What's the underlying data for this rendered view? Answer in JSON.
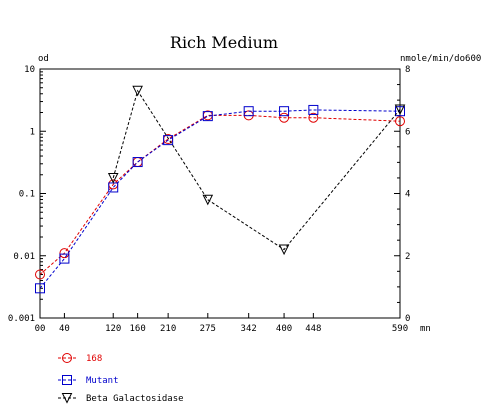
{
  "chart_data": {
    "type": "line",
    "title": "Rich Medium",
    "ylabel_left": "od",
    "ylabel_right": "nmole/min/do600",
    "xunit": "mn",
    "x_ticks": [
      0,
      40,
      120,
      160,
      210,
      275,
      342,
      400,
      448,
      590
    ],
    "x_tick_labels": [
      "00",
      "40",
      "120",
      "160",
      "210",
      "275",
      "342",
      "400",
      "448",
      "590"
    ],
    "xlim": [
      0,
      590
    ],
    "y_left_scale": "log",
    "y_left_lim": [
      0.001,
      10
    ],
    "y_left_ticks": [
      0.001,
      0.01,
      0.1,
      1,
      10
    ],
    "y_left_tick_labels": [
      "0.001",
      "0.01",
      "0.1",
      "1",
      "10"
    ],
    "y_right_lim": [
      0,
      8
    ],
    "y_right_ticks": [
      0,
      2,
      4,
      6,
      8
    ],
    "y_right_tick_labels": [
      "0",
      "2",
      "4",
      "6",
      "8"
    ],
    "grid": false,
    "legend_position": "bottom-left",
    "series": [
      {
        "name": "168",
        "axis": "left",
        "color": "#e00000",
        "marker": "circle",
        "line": "dashed",
        "x": [
          0,
          40,
          120,
          160,
          210,
          275,
          342,
          400,
          448,
          590
        ],
        "y": [
          0.005,
          0.011,
          0.14,
          0.32,
          0.75,
          1.8,
          1.8,
          1.65,
          1.65,
          1.45
        ]
      },
      {
        "name": "Mutant",
        "axis": "left",
        "color": "#0000cc",
        "marker": "square",
        "line": "dashed",
        "x": [
          0,
          40,
          120,
          160,
          210,
          275,
          342,
          400,
          448,
          590
        ],
        "y": [
          0.003,
          0.009,
          0.125,
          0.32,
          0.72,
          1.75,
          2.1,
          2.1,
          2.2,
          2.1
        ]
      },
      {
        "name": "Beta Galactosidase",
        "axis": "right",
        "color": "#000000",
        "marker": "triangle-down",
        "line": "dashed",
        "x": [
          120,
          160,
          275,
          400,
          590
        ],
        "y": [
          4.5,
          7.3,
          3.8,
          2.2,
          6.7
        ]
      }
    ]
  }
}
